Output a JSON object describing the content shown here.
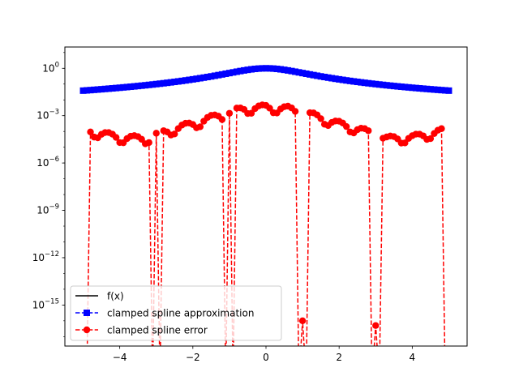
{
  "chart_data": {
    "type": "line",
    "yscale": "log",
    "xlim": [
      -5.5,
      5.5
    ],
    "ylim_exp": [
      -17.6,
      1.35
    ],
    "x_ticks": [
      {
        "value": -4,
        "label": "−4"
      },
      {
        "value": -2,
        "label": "−2"
      },
      {
        "value": 0,
        "label": "0"
      },
      {
        "value": 2,
        "label": "2"
      },
      {
        "value": 4,
        "label": "4"
      }
    ],
    "y_ticks": [
      {
        "exp": 0,
        "base": "10",
        "sup": "0"
      },
      {
        "exp": -3,
        "base": "10",
        "sup": "−3"
      },
      {
        "exp": -6,
        "base": "10",
        "sup": "−6"
      },
      {
        "exp": -9,
        "base": "10",
        "sup": "−9"
      },
      {
        "exp": -12,
        "base": "10",
        "sup": "−12"
      },
      {
        "exp": -15,
        "base": "10",
        "sup": "−15"
      }
    ],
    "x_range": [
      -5,
      5
    ],
    "num_points": 101,
    "error_nodes": [
      -5,
      -4.9,
      -3.1,
      -2.9,
      -1.1,
      -0.9,
      0.9,
      1.1,
      2.9,
      3.1,
      4.9,
      5
    ],
    "error_spikes": [
      {
        "x": 1.0,
        "y": 1e-16
      },
      {
        "x": 3.0,
        "y": 5e-17
      }
    ],
    "error_lobe_peaks": [
      {
        "x": -4.8,
        "y": 0.00015
      },
      {
        "x": -4.0,
        "y": 6e-05
      },
      {
        "x": -3.3,
        "y": 5e-05
      },
      {
        "x": -2.6,
        "y": 0.00018
      },
      {
        "x": -1.8,
        "y": 0.0006
      },
      {
        "x": -1.3,
        "y": 0.0015
      },
      {
        "x": -0.6,
        "y": 0.004
      },
      {
        "x": 0.0,
        "y": 0.005
      },
      {
        "x": 0.6,
        "y": 0.004
      },
      {
        "x": 1.3,
        "y": 0.0015
      },
      {
        "x": 1.8,
        "y": 0.0006
      },
      {
        "x": 2.6,
        "y": 0.00018
      },
      {
        "x": 3.3,
        "y": 5e-05
      },
      {
        "x": 4.0,
        "y": 6e-05
      },
      {
        "x": 4.8,
        "y": 0.00015
      }
    ],
    "colors": {
      "function": "#000000",
      "approximation": "#0000ff",
      "error": "#ff0000"
    },
    "legend": {
      "placement": "lower-left",
      "entries": [
        {
          "label": "f(x)",
          "color": "#000000",
          "line": "solid",
          "marker": "none"
        },
        {
          "label": "clamped spline approximation",
          "color": "#0000ff",
          "line": "dashed",
          "marker": "square"
        },
        {
          "label": "clamped spline error",
          "color": "#ff0000",
          "line": "dashed",
          "marker": "circle"
        }
      ]
    }
  }
}
